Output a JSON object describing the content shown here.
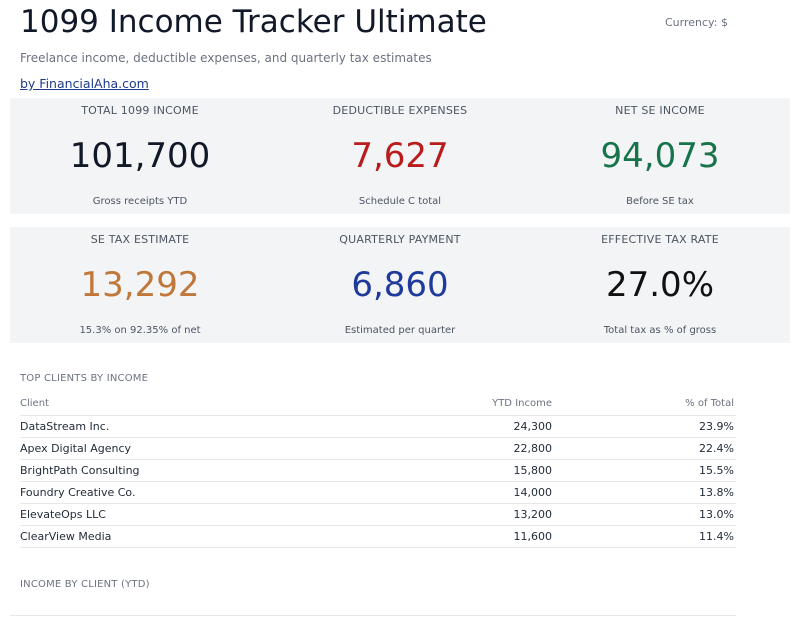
{
  "header": {
    "title": "1099 Income Tracker Ultimate",
    "currency": "Currency: $",
    "subtitle": "Freelance income, deductible expenses, and quarterly tax estimates",
    "byline": "by FinancialAha.com"
  },
  "kpis": [
    {
      "label": "TOTAL 1099 INCOME",
      "value": "101,700",
      "sub": "Gross receipts YTD",
      "color": "#111827"
    },
    {
      "label": "DEDUCTIBLE EXPENSES",
      "value": "7,627",
      "sub": "Schedule C total",
      "color": "#b91c1c"
    },
    {
      "label": "NET SE INCOME",
      "value": "94,073",
      "sub": "Before SE tax",
      "color": "#16734a"
    },
    {
      "label": "SE TAX ESTIMATE",
      "value": "13,292",
      "sub": "15.3% on 92.35% of net",
      "color": "#c0773a"
    },
    {
      "label": "QUARTERLY PAYMENT",
      "value": "6,860",
      "sub": "Estimated per quarter",
      "color": "#1e3a9a"
    },
    {
      "label": "EFFECTIVE TAX RATE",
      "value": "27.0%",
      "sub": "Total tax as % of gross",
      "color": "#111111"
    }
  ],
  "top_clients": {
    "title": "TOP CLIENTS BY INCOME",
    "columns": [
      "Client",
      "YTD Income",
      "% of Total"
    ],
    "rows": [
      {
        "client": "DataStream Inc.",
        "income": "24,300",
        "pct": "23.9%"
      },
      {
        "client": "Apex Digital Agency",
        "income": "22,800",
        "pct": "22.4%"
      },
      {
        "client": "BrightPath Consulting",
        "income": "15,800",
        "pct": "15.5%"
      },
      {
        "client": "Foundry Creative Co.",
        "income": "14,000",
        "pct": "13.8%"
      },
      {
        "client": "ElevateOps LLC",
        "income": "13,200",
        "pct": "13.0%"
      },
      {
        "client": "ClearView Media",
        "income": "11,600",
        "pct": "11.4%"
      }
    ]
  },
  "income_chart": {
    "title": "INCOME BY CLIENT (YTD)"
  }
}
